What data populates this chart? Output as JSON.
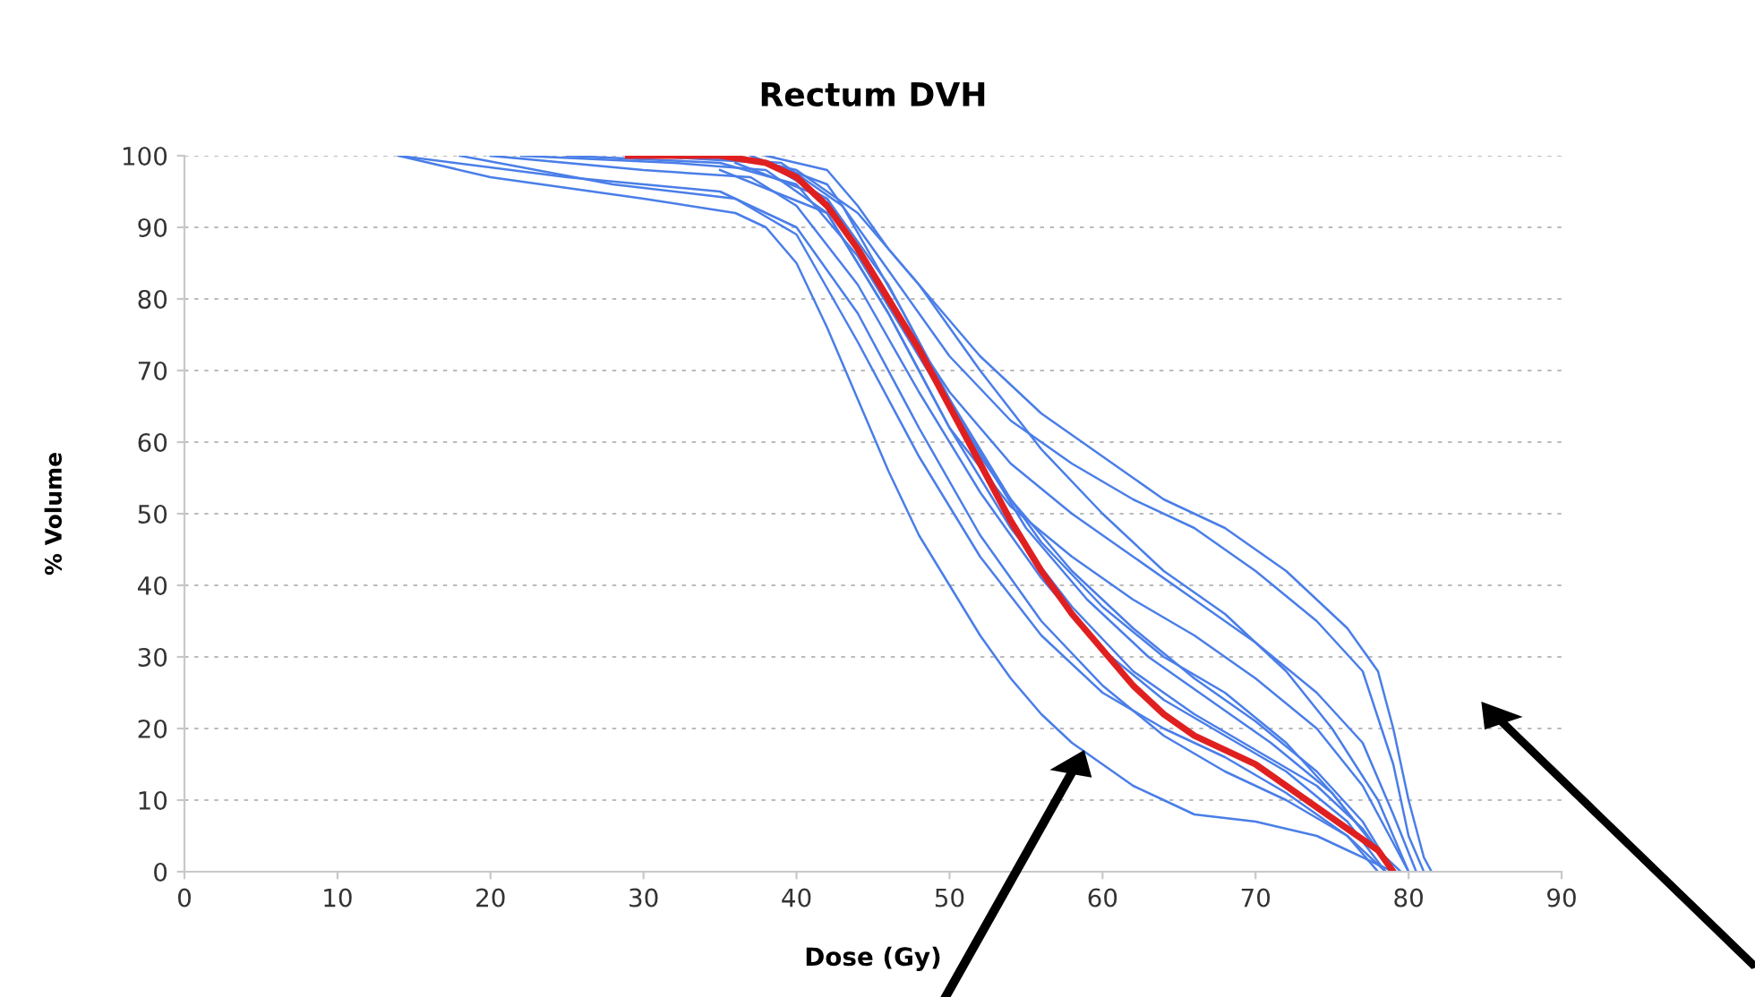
{
  "chart_data": {
    "type": "line",
    "title": "Rectum DVH",
    "xlabel": "Dose (Gy)",
    "ylabel": "% Volume",
    "xlim": [
      0,
      90
    ],
    "xticks": [
      0,
      10,
      20,
      30,
      40,
      50,
      60,
      70,
      80,
      90
    ],
    "ylim": [
      0,
      100
    ],
    "yticks": [
      0,
      10,
      20,
      30,
      40,
      50,
      60,
      70,
      80,
      90,
      100
    ],
    "grid": "y",
    "legend": false,
    "marker": "none",
    "line_style": "solid",
    "series": [
      {
        "color": "#4a7ee8",
        "x": [
          38,
          42,
          44,
          46,
          48,
          50,
          52,
          54,
          56,
          58,
          60,
          62,
          64,
          66,
          68,
          70,
          72,
          74,
          76,
          78,
          79,
          80,
          81,
          81.5
        ],
        "values": [
          100,
          98,
          93,
          87,
          82,
          77,
          72,
          68,
          64,
          61,
          58,
          55,
          52,
          50,
          48,
          45,
          42,
          38,
          34,
          28,
          20,
          10,
          2,
          0
        ]
      },
      {
        "color": "#4a7ee8",
        "x": [
          37,
          42,
          46,
          50,
          54,
          58,
          62,
          66,
          70,
          74,
          77,
          79,
          80,
          81
        ],
        "values": [
          100,
          96,
          84,
          72,
          63,
          57,
          52,
          48,
          42,
          35,
          28,
          15,
          5,
          0
        ]
      },
      {
        "color": "#4a7ee8",
        "x": [
          36,
          42,
          46,
          50,
          54,
          58,
          62,
          66,
          70,
          74,
          77,
          79,
          80.5
        ],
        "values": [
          99,
          94,
          80,
          67,
          57,
          50,
          44,
          38,
          32,
          25,
          18,
          8,
          0
        ]
      },
      {
        "color": "#4a7ee8",
        "x": [
          35,
          42,
          46,
          50,
          54,
          58,
          62,
          66,
          70,
          74,
          77,
          79,
          80
        ],
        "values": [
          98,
          92,
          78,
          62,
          51,
          44,
          38,
          33,
          27,
          20,
          12,
          4,
          0
        ]
      },
      {
        "color": "#4a7ee8",
        "x": [
          36,
          40,
          44,
          48,
          52,
          56,
          60,
          64,
          68,
          72,
          75,
          78,
          80
        ],
        "values": [
          100,
          98,
          92,
          82,
          70,
          59,
          50,
          42,
          36,
          28,
          20,
          10,
          0
        ]
      },
      {
        "color": "#4a7ee8",
        "x": [
          14,
          20,
          30,
          36,
          38,
          40,
          42,
          44,
          46,
          48,
          50,
          52,
          54,
          56,
          58,
          60,
          62,
          64,
          66,
          70,
          74,
          76,
          78,
          79
        ],
        "values": [
          100,
          97,
          94,
          92,
          90,
          85,
          76,
          66,
          56,
          47,
          40,
          33,
          27,
          22,
          18,
          15,
          12,
          10,
          8,
          7,
          5,
          3,
          1,
          0
        ]
      },
      {
        "color": "#4a7ee8",
        "x": [
          14,
          25,
          35,
          40,
          44,
          48,
          52,
          56,
          60,
          64,
          68,
          72,
          76,
          78.5
        ],
        "values": [
          100,
          97,
          95,
          90,
          78,
          62,
          47,
          35,
          26,
          19,
          14,
          10,
          5,
          0
        ]
      },
      {
        "color": "#4a7ee8",
        "x": [
          20,
          30,
          37,
          40,
          44,
          48,
          52,
          56,
          60,
          64,
          68,
          72,
          76,
          78.5
        ],
        "values": [
          100,
          98,
          97,
          93,
          82,
          67,
          53,
          41,
          31,
          24,
          19,
          14,
          7,
          0
        ]
      },
      {
        "color": "#4a7ee8",
        "x": [
          22,
          32,
          38,
          42,
          46,
          50,
          54,
          58,
          62,
          66,
          70,
          74,
          77,
          79
        ],
        "values": [
          100,
          99,
          98,
          92,
          78,
          62,
          48,
          37,
          28,
          22,
          17,
          12,
          6,
          0
        ]
      },
      {
        "color": "#4a7ee8",
        "x": [
          30,
          38,
          42,
          46,
          50,
          54,
          58,
          62,
          66,
          70,
          74,
          77,
          79
        ],
        "values": [
          100,
          99,
          94,
          82,
          66,
          52,
          42,
          34,
          27,
          21,
          14,
          7,
          0
        ]
      },
      {
        "color": "#4a7ee8",
        "x": [
          25,
          35,
          40,
          44,
          48,
          52,
          56,
          60,
          64,
          68,
          72,
          75,
          78,
          79
        ],
        "values": [
          100,
          99,
          96,
          86,
          72,
          58,
          46,
          37,
          30,
          25,
          18,
          11,
          3,
          0
        ]
      },
      {
        "color": "#4a7ee8",
        "x": [
          18,
          28,
          36,
          40,
          44,
          48,
          52,
          56,
          60,
          64,
          68,
          72,
          76,
          78
        ],
        "values": [
          100,
          96,
          94,
          89,
          74,
          58,
          44,
          33,
          25,
          20,
          16,
          11,
          5,
          0
        ]
      },
      {
        "color": "#4a7ee8",
        "x": [
          33,
          39,
          43,
          47,
          51,
          55,
          59,
          63,
          67,
          71,
          75,
          78,
          79.5
        ],
        "values": [
          100,
          99,
          93,
          78,
          62,
          48,
          38,
          30,
          24,
          18,
          11,
          3,
          0
        ]
      },
      {
        "color": "#e02020",
        "x": [
          29,
          35,
          38,
          40,
          42,
          44,
          46,
          48,
          50,
          52,
          54,
          56,
          58,
          60,
          62,
          64,
          66,
          68,
          70,
          72,
          74,
          76,
          78,
          79
        ],
        "values": [
          100,
          100,
          99,
          97,
          93,
          87,
          80,
          73,
          65,
          57,
          49,
          42,
          36,
          31,
          26,
          22,
          19,
          17,
          15,
          12,
          9,
          6,
          3,
          0
        ]
      }
    ]
  }
}
